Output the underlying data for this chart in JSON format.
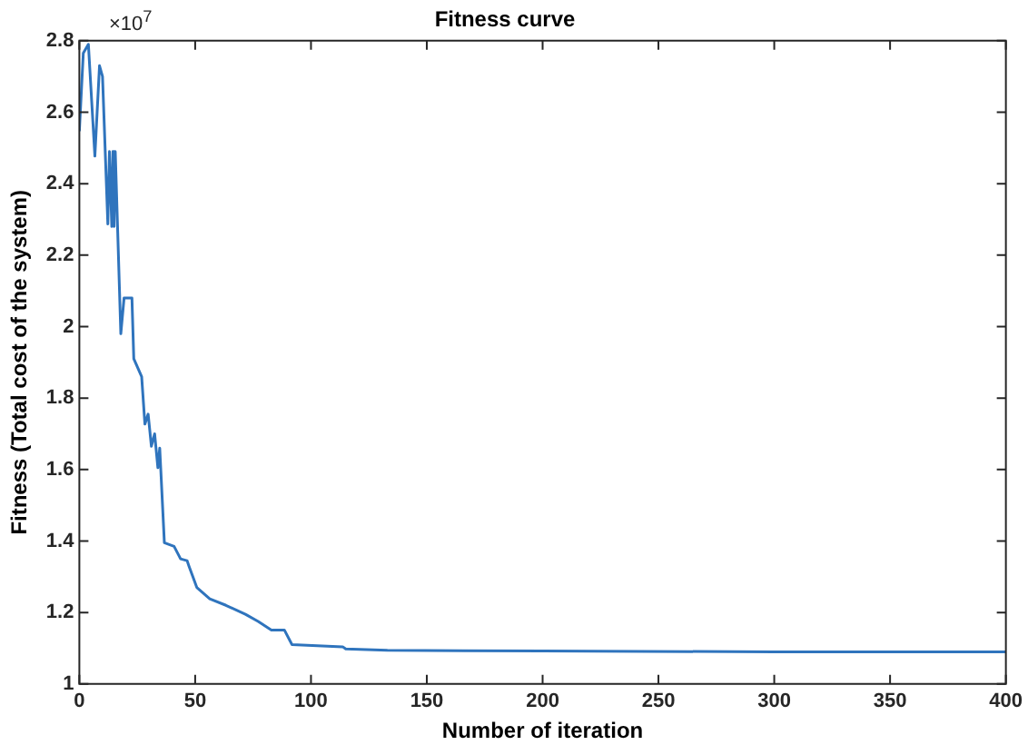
{
  "chart_data": {
    "type": "line",
    "title": "Fitness curve",
    "xlabel": "Number of iteration",
    "ylabel": "Fitness (Total cost of the system)",
    "annotations": [
      "×10$^{7}$"
    ],
    "series": [
      {
        "color": "#2f74bd",
        "x": [
          0,
          1.7,
          3.9,
          6.7,
          8.7,
          10,
          12.3,
          13,
          14,
          14.5,
          15,
          15.5,
          17.9,
          19.3,
          22.7,
          23.5,
          26.9,
          28.3,
          29.7,
          31.1,
          32.5,
          33.9,
          34.7,
          36.7,
          40.9,
          43.7,
          46.5,
          47.3,
          50.7,
          56.3,
          63.3,
          71.7,
          77.2,
          82.9,
          88.5,
          91.8,
          113.7,
          115,
          133,
          200,
          300,
          400
        ],
        "values": [
          2.547,
          2.765,
          2.79,
          2.477,
          2.73,
          2.7,
          2.287,
          2.49,
          2.28,
          2.49,
          2.28,
          2.49,
          1.98,
          2.08,
          2.08,
          1.91,
          1.86,
          1.727,
          1.755,
          1.665,
          1.7,
          1.605,
          1.66,
          1.395,
          1.385,
          1.35,
          1.345,
          1.33,
          1.27,
          1.238,
          1.22,
          1.195,
          1.175,
          1.151,
          1.151,
          1.11,
          1.104,
          1.098,
          1.094,
          1.092,
          1.09,
          1.09
        ]
      }
    ],
    "xlim": [
      0,
      400
    ],
    "xticks": [
      0,
      50,
      100,
      150,
      200,
      250,
      300,
      350,
      400
    ],
    "ylim": [
      1,
      2.8
    ],
    "yticks": [
      1,
      1.2,
      1.4,
      1.6,
      1.8,
      2,
      2.2,
      2.4,
      2.6,
      2.8
    ],
    "grid": false,
    "legend": false,
    "marker": "none",
    "line_style": "solid"
  }
}
